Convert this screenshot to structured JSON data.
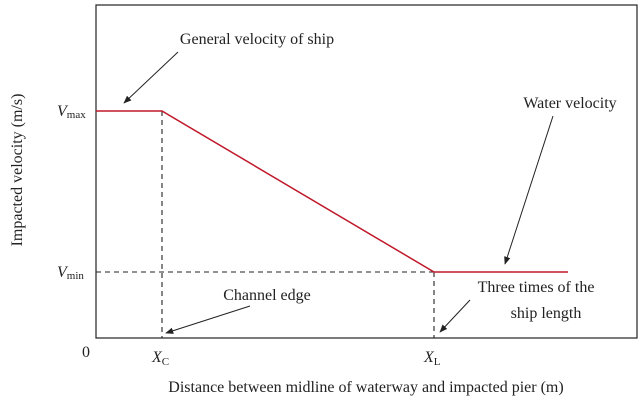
{
  "chart_data": {
    "type": "diagram",
    "y_axis_label": "Impacted velocity (m/s)",
    "x_axis_label": "Distance between midline of waterway and impacted pier (m)",
    "origin_label": "0",
    "y_ticks": [
      {
        "main": "V",
        "sub": "max"
      },
      {
        "main": "V",
        "sub": "min"
      }
    ],
    "x_ticks": [
      {
        "main": "X",
        "sub": "C"
      },
      {
        "main": "X",
        "sub": "L"
      }
    ],
    "annotations": [
      "General velocity of ship",
      "Water velocity",
      "Channel edge",
      "Three times of the",
      "ship length"
    ],
    "line_color": "#c0182a"
  }
}
